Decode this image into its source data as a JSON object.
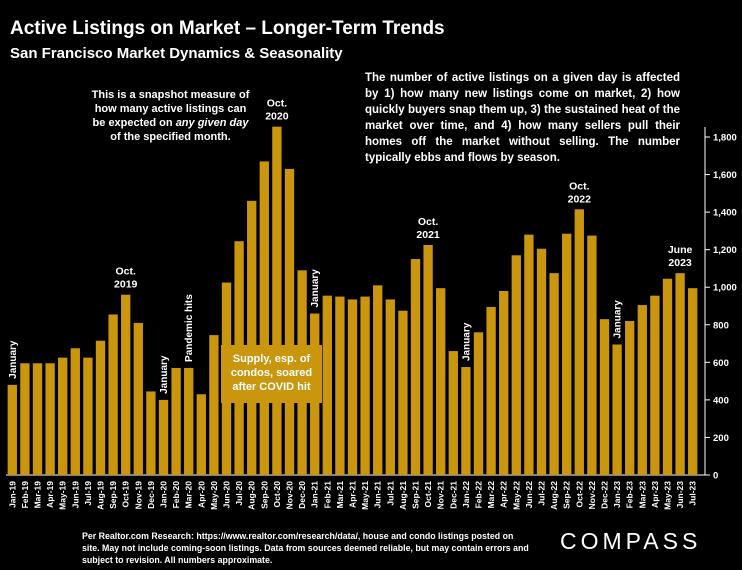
{
  "title": "Active Listings on Market – Longer-Term Trends",
  "subtitle": "San Francisco Market Dynamics & Seasonality",
  "note_left_1": "This is a snapshot measure of how many active listings can be expected on ",
  "note_left_em": "any given day",
  "note_left_2": " of the specified month.",
  "note_right": "The number of active listings on a given day is affected by 1) how many new listings come on market, 2) how quickly buyers snap them up, 3) the sustained heat of the market over time, and 4) how many sellers pull their homes off the market without selling. The number typically ebbs and flows by season.",
  "annotation_box": "Supply, esp. of condos, soared after COVID hit",
  "footer": "Per Realtor.com Research:  https://www.realtor.com/research/data/, house and condo listings posted on site. May not include coming-soon listings. Data from sources deemed reliable, but may contain errors and subject to revision. All numbers approximate.",
  "logo": "COMPASS",
  "colors": {
    "bar": "#c9960d",
    "background": "#000000",
    "text": "#ffffff"
  },
  "chart_data": {
    "type": "bar",
    "ylim": [
      0,
      1900
    ],
    "yticks": [
      0,
      200,
      400,
      600,
      800,
      1000,
      1200,
      1400,
      1600,
      1800
    ],
    "ytick_labels": [
      "0",
      "200",
      "400",
      "600",
      "800",
      "1,000",
      "1,200",
      "1,400",
      "1,600",
      "1,800"
    ],
    "y_axis_side": "right",
    "categories": [
      "Jan-19",
      "Feb-19",
      "Mar-19",
      "Apr-19",
      "May-19",
      "Jun-19",
      "Jul-19",
      "Aug-19",
      "Sep-19",
      "Oct-19",
      "Nov-19",
      "Dec-19",
      "Jan-20",
      "Feb-20",
      "Mar-20",
      "Apr-20",
      "May-20",
      "Jun-20",
      "Jul-20",
      "Aug-20",
      "Sep-20",
      "Oct-20",
      "Nov-20",
      "Dec-20",
      "Jan-21",
      "Feb-21",
      "Mar-21",
      "Apr-21",
      "May-21",
      "Jun-21",
      "Jul-21",
      "Aug-21",
      "Sep-21",
      "Oct-21",
      "Nov-21",
      "Dec-21",
      "Jan-22",
      "Feb-22",
      "Mar-22",
      "Apr-22",
      "May-22",
      "Jun-22",
      "Jul-22",
      "Aug-22",
      "Sep-22",
      "Oct-22",
      "Nov-22",
      "Dec-22",
      "Jan-23",
      "Feb-23",
      "Mar-23",
      "Apr-23",
      "May-23",
      "Jun-23",
      "Jul-23"
    ],
    "values": [
      480,
      595,
      595,
      595,
      625,
      675,
      625,
      715,
      855,
      960,
      810,
      445,
      400,
      570,
      570,
      430,
      745,
      1025,
      1245,
      1460,
      1670,
      1855,
      1630,
      1090,
      860,
      955,
      950,
      935,
      950,
      1010,
      935,
      875,
      1150,
      1225,
      995,
      660,
      575,
      760,
      895,
      980,
      1170,
      1280,
      1205,
      1075,
      1285,
      1415,
      1275,
      830,
      695,
      820,
      905,
      955,
      1045,
      1075,
      995
    ],
    "annotations": [
      {
        "text": "January",
        "index": 0,
        "vertical": true
      },
      {
        "text": "Oct.",
        "text2": "2019",
        "index": 9
      },
      {
        "text": "January",
        "index": 12,
        "vertical": true
      },
      {
        "text": "Pandemic hits",
        "index": 14,
        "vertical": true
      },
      {
        "text": "Oct.",
        "text2": "2020",
        "index": 21
      },
      {
        "text": "January",
        "index": 24,
        "vertical": true
      },
      {
        "text": "Oct.",
        "text2": "2021",
        "index": 33
      },
      {
        "text": "January",
        "index": 36,
        "vertical": true
      },
      {
        "text": "Oct.",
        "text2": "2022",
        "index": 45
      },
      {
        "text": "January",
        "index": 48,
        "vertical": true
      },
      {
        "text": "June",
        "text2": "2023",
        "index": 53
      }
    ]
  }
}
